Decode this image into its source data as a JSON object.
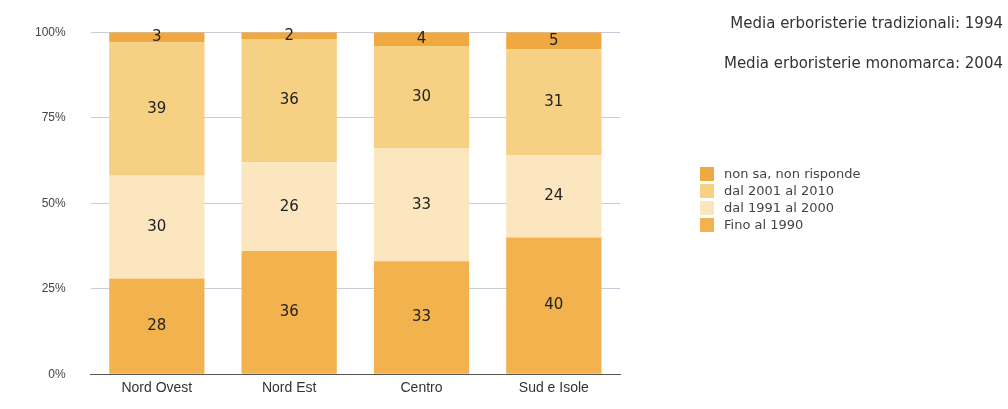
{
  "chart_data": {
    "type": "bar",
    "stacked": true,
    "categories": [
      "Nord Ovest",
      "Nord Est",
      "Centro",
      "Sud e Isole"
    ],
    "series": [
      {
        "name": "Fino al 1990",
        "color": "#f2b24d",
        "values": [
          28,
          36,
          33,
          40
        ]
      },
      {
        "name": "dal 1991 al 2000",
        "color": "#fbe6bf",
        "values": [
          30,
          26,
          33,
          24
        ]
      },
      {
        "name": "dal 2001 al 2010",
        "color": "#f6d184",
        "values": [
          39,
          36,
          30,
          31
        ]
      },
      {
        "name": "non sa, non risponde",
        "color": "#f0a840",
        "values": [
          3,
          2,
          4,
          5
        ]
      }
    ],
    "ylim": [
      0,
      100
    ],
    "yticks": [
      {
        "value": 0,
        "label": "0%"
      },
      {
        "value": 25,
        "label": "25%"
      },
      {
        "value": 50,
        "label": "50%"
      },
      {
        "value": 75,
        "label": "75%"
      },
      {
        "value": 100,
        "label": "100%"
      }
    ],
    "grid": "y",
    "legend": "right",
    "data_labels": true,
    "annotations": [
      "Media erboristerie tradizionali: 1994",
      "Media erboristerie monomarca: 2004"
    ]
  }
}
